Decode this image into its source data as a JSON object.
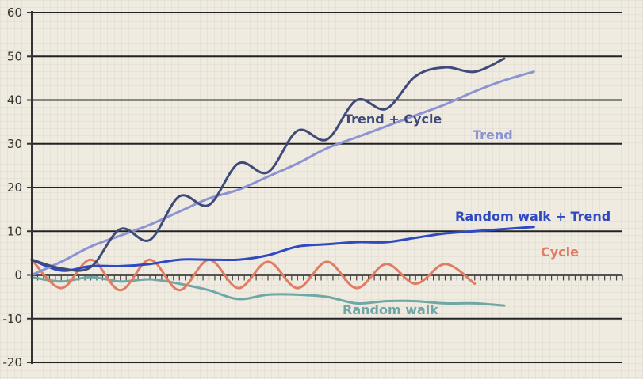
{
  "chart_data": {
    "type": "line",
    "title": "",
    "xlabel": "",
    "ylabel": "",
    "ylim": [
      -20,
      60
    ],
    "yticks": [
      60,
      50,
      40,
      30,
      20,
      10,
      0,
      -10,
      -20
    ],
    "ytick_labels": [
      "60",
      "50",
      "40",
      "30",
      "20",
      "10",
      "0",
      "-10",
      "-20"
    ],
    "x": [
      0,
      5,
      10,
      15,
      20,
      25,
      30,
      35,
      40,
      45,
      50,
      55,
      60,
      65,
      70,
      75,
      80,
      85,
      90,
      95,
      100
    ],
    "grid": "horizontal",
    "legend": "none",
    "series": [
      {
        "name": "Trend + Cycle",
        "color": "#3f4a78",
        "values": [
          3.5,
          1.5,
          1.8,
          10.5,
          8.0,
          18.0,
          16.0,
          25.5,
          23.5,
          33.0,
          31.0,
          40.0,
          38.0,
          45.5,
          47.5,
          46.5,
          49.5,
          null,
          null,
          null,
          null
        ]
      },
      {
        "name": "Trend",
        "color": "#8c93d2",
        "values": [
          0.0,
          3.0,
          6.5,
          9.0,
          11.5,
          14.5,
          17.5,
          19.5,
          22.5,
          25.5,
          29.0,
          31.5,
          34.0,
          36.5,
          39.0,
          42.0,
          44.5,
          46.5,
          null,
          null,
          null
        ]
      },
      {
        "name": "Random walk + Trend",
        "color": "#2e49c2",
        "values": [
          3.5,
          1.0,
          2.0,
          2.0,
          2.5,
          3.5,
          3.5,
          3.5,
          4.5,
          6.5,
          7.0,
          7.5,
          7.5,
          8.5,
          9.5,
          10.0,
          10.5,
          11.0,
          null,
          null,
          null
        ]
      },
      {
        "name": "Cycle",
        "color": "#df7c63",
        "values": [
          3.5,
          -3.0,
          3.5,
          -3.5,
          3.5,
          -3.5,
          3.5,
          -3.0,
          3.0,
          -3.0,
          3.0,
          -3.0,
          2.5,
          -2.0,
          2.5,
          -2.0,
          null,
          null,
          null,
          null,
          null
        ]
      },
      {
        "name": "Random walk",
        "color": "#6fa6a6",
        "values": [
          -0.5,
          -1.5,
          -0.5,
          -1.5,
          -1.0,
          -2.0,
          -3.5,
          -5.5,
          -4.5,
          -4.5,
          -5.0,
          -6.5,
          -6.0,
          -6.0,
          -6.5,
          -6.5,
          -7.0,
          null,
          null,
          null,
          null
        ]
      }
    ],
    "labels": {
      "trend_cycle": "Trend + Cycle",
      "trend": "Trend",
      "random_walk_trend": "Random walk + Trend",
      "cycle": "Cycle",
      "random_walk": "Random walk"
    }
  },
  "colors": {
    "background": "#efebe1",
    "axis": "#333333",
    "gridline": "#222222"
  }
}
